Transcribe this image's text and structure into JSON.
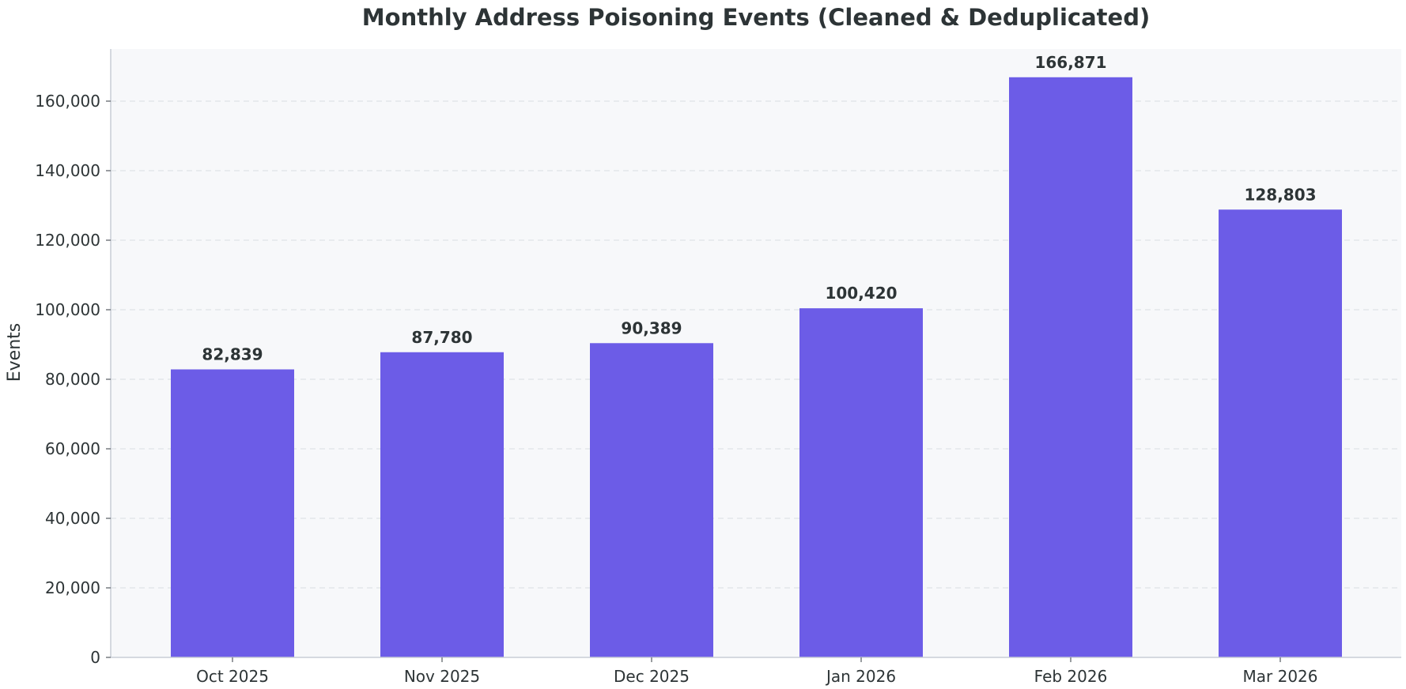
{
  "chart_data": {
    "type": "bar",
    "title": "Monthly Address Poisoning Events (Cleaned & Deduplicated)",
    "xlabel": "",
    "ylabel": "Events",
    "categories": [
      "Oct 2025",
      "Nov 2025",
      "Dec 2025",
      "Jan 2026",
      "Feb 2026",
      "Mar 2026"
    ],
    "values": [
      82839,
      87780,
      90389,
      100420,
      166871,
      128803
    ],
    "value_labels": [
      "82,839",
      "87,780",
      "90,389",
      "100,420",
      "166,871",
      "128,803"
    ],
    "ylim": [
      0,
      175000
    ],
    "yticks": [
      0,
      20000,
      40000,
      60000,
      80000,
      100000,
      120000,
      140000,
      160000
    ],
    "ytick_labels": [
      "0",
      "20,000",
      "40,000",
      "60,000",
      "80,000",
      "100,000",
      "120,000",
      "140,000",
      "160,000"
    ],
    "grid": true,
    "legend": false,
    "colors": {
      "bar": "#6c5ce7",
      "plot_background": "#f7f8fa",
      "text": "#2d3436"
    }
  }
}
